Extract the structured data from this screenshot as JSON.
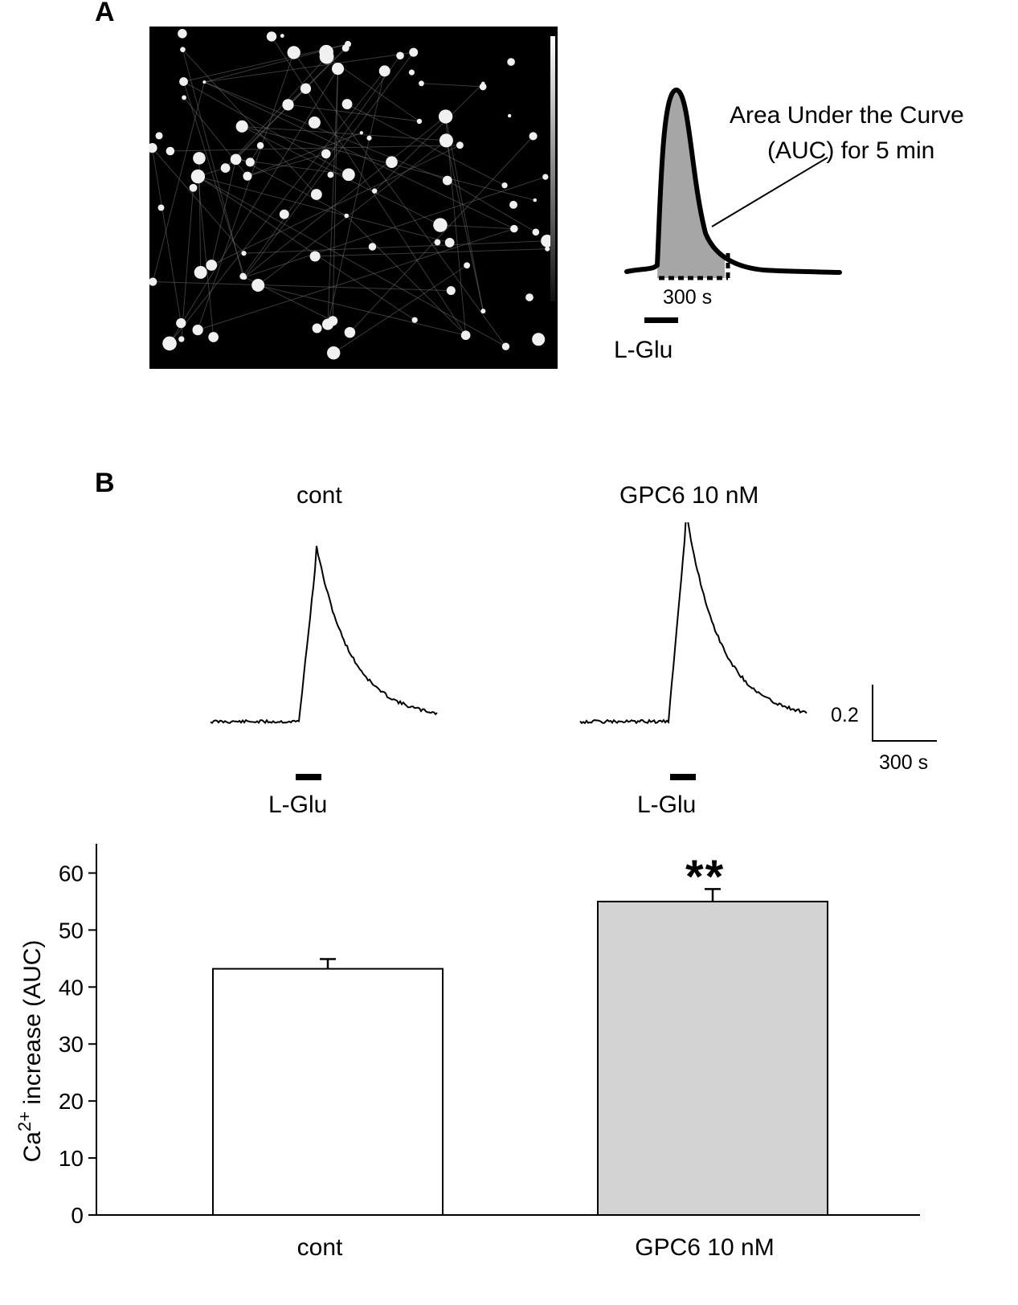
{
  "panel_a": {
    "label": "A",
    "annotation_line1": "Area Under the Curve",
    "annotation_line2": "(AUC) for 5 min",
    "time_label": "300 s",
    "stimulus_label": "L-Glu"
  },
  "panel_b": {
    "label": "B",
    "trace_titles": [
      "cont",
      "GPC6 10 nM"
    ],
    "stimulus_label": "L-Glu",
    "scale_y_label": "0.2",
    "scale_x_label": "300 s",
    "significance": "**"
  },
  "chart_data": {
    "type": "bar",
    "categories": [
      "cont",
      "GPC6 10 nM"
    ],
    "values": [
      43.2,
      55.0
    ],
    "errors": [
      1.7,
      2.2
    ],
    "colors": [
      "#ffffff",
      "#d3d3d3"
    ],
    "ylabel_base": "Ca",
    "ylabel_sup": "2+",
    "ylabel_rest": " increase (AUC)",
    "ylim": [
      0,
      65
    ],
    "yticks": [
      0,
      10,
      20,
      30,
      40,
      50,
      60
    ],
    "grid": false
  }
}
